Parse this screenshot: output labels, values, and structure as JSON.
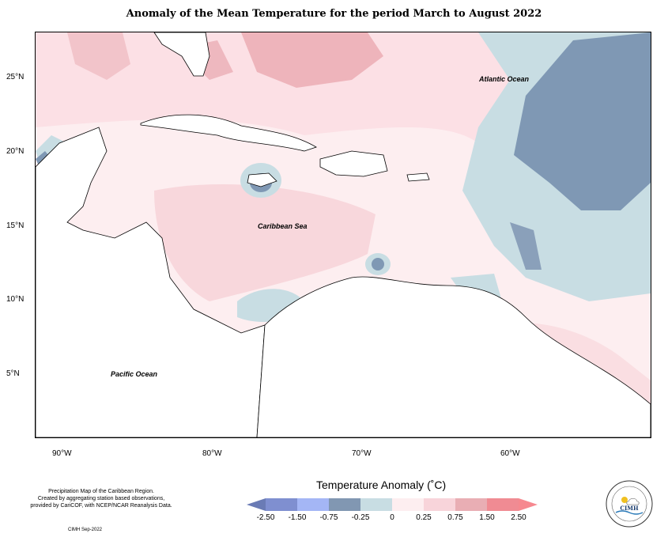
{
  "title": "Anomaly of the Mean Temperature for the period March to August 2022",
  "lat_labels": [
    "25°N",
    "20°N",
    "15°N",
    "10°N",
    "5°N"
  ],
  "lon_labels": [
    "90°W",
    "80°W",
    "70°W",
    "60°W"
  ],
  "ocean_labels": {
    "atlantic": "Atlantic Ocean",
    "caribbean": "Caribbean Sea",
    "pacific": "Pacific Ocean"
  },
  "footnote": {
    "line1": "Precipitation Map of the Caribbean Region.",
    "line2": "Created by aggregating station based observations,",
    "line3": "provided by CariCOF, with NCEP/NCAR Reanalysis Data.",
    "date": "CIMH Sep-2022"
  },
  "legend": {
    "title": "Temperature Anomaly (˚C)",
    "ticks": [
      "-2.50",
      "-1.50",
      "-0.75",
      "-0.25",
      "0",
      "0.25",
      "0.75",
      "1.50",
      "2.50"
    ],
    "colors": [
      "#6a7bb5",
      "#7f8fd0",
      "#a4b6f5",
      "#8197b2",
      "#c8dde3",
      "#fdeef0",
      "#f8d4da",
      "#e9aeb4",
      "#f08b93",
      "#f6888f"
    ]
  },
  "logo": {
    "text": "CIMH"
  }
}
